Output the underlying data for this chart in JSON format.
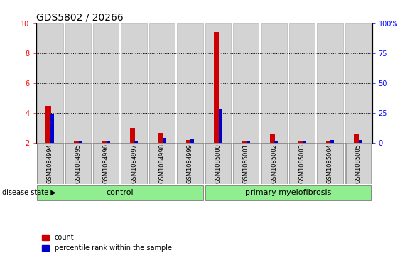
{
  "title": "GDS5802 / 20266",
  "samples": [
    "GSM1084994",
    "GSM1084995",
    "GSM1084996",
    "GSM1084997",
    "GSM1084998",
    "GSM1084999",
    "GSM1085000",
    "GSM1085001",
    "GSM1085002",
    "GSM1085003",
    "GSM1085004",
    "GSM1085005"
  ],
  "count_values": [
    4.5,
    2.1,
    2.1,
    3.0,
    2.7,
    2.2,
    9.4,
    2.1,
    2.6,
    2.1,
    2.1,
    2.6
  ],
  "percentile_values": [
    3.9,
    2.15,
    2.15,
    2.1,
    2.35,
    2.3,
    4.3,
    2.15,
    2.15,
    2.15,
    2.2,
    2.2
  ],
  "ylim_left": [
    2,
    10
  ],
  "ylim_right": [
    0,
    100
  ],
  "yticks_left": [
    2,
    4,
    6,
    8,
    10
  ],
  "yticks_right": [
    0,
    25,
    50,
    75,
    100
  ],
  "ytick_labels_left": [
    "2",
    "4",
    "6",
    "8",
    "10"
  ],
  "ytick_labels_right": [
    "0",
    "25",
    "50",
    "75",
    "100%"
  ],
  "grid_values": [
    4,
    6,
    8
  ],
  "count_color": "#cc0000",
  "percentile_color": "#0000cc",
  "bar_bg_color": "#d3d3d3",
  "control_color": "#90ee90",
  "disease_color": "#90ee90",
  "control_samples": 6,
  "disease_samples": 6,
  "control_label": "control",
  "disease_label": "primary myelofibrosis",
  "disease_state_label": "disease state",
  "legend_count": "count",
  "legend_percentile": "percentile rank within the sample",
  "title_fontsize": 10,
  "tick_fontsize": 7,
  "label_fontsize": 8,
  "sample_fontsize": 6
}
